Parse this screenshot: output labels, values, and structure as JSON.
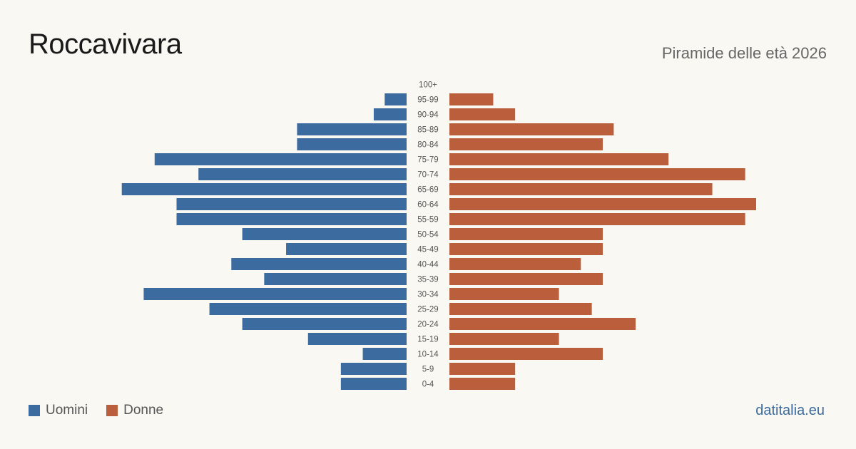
{
  "header": {
    "title": "Roccavivara",
    "subtitle": "Piramide delle età 2026"
  },
  "legend": [
    {
      "label": "Uomini",
      "color": "#3b6b9f"
    },
    {
      "label": "Donne",
      "color": "#bb5e3c"
    }
  ],
  "footer": {
    "brand": "datitalia.eu"
  },
  "chart_data": {
    "type": "bar",
    "orientation": "horizontal-pyramid",
    "title": "Roccavivara",
    "subtitle": "Piramide delle età 2026",
    "categories": [
      "100+",
      "95-99",
      "90-94",
      "85-89",
      "80-84",
      "75-79",
      "70-74",
      "65-69",
      "60-64",
      "55-59",
      "50-54",
      "45-49",
      "40-44",
      "35-39",
      "30-34",
      "25-29",
      "20-24",
      "15-19",
      "10-14",
      "5-9",
      "0-4"
    ],
    "series": [
      {
        "name": "Uomini",
        "color": "#3b6b9f",
        "values": [
          0,
          2,
          3,
          10,
          10,
          23,
          19,
          26,
          21,
          21,
          15,
          11,
          16,
          13,
          24,
          18,
          15,
          9,
          4,
          6,
          6
        ]
      },
      {
        "name": "Donne",
        "color": "#bb5e3c",
        "values": [
          0,
          4,
          6,
          15,
          14,
          20,
          27,
          24,
          28,
          27,
          14,
          14,
          12,
          14,
          10,
          13,
          17,
          10,
          14,
          6,
          6
        ]
      }
    ],
    "xlim": [
      0,
      28
    ],
    "grid": false,
    "legend_position": "bottom-left"
  }
}
